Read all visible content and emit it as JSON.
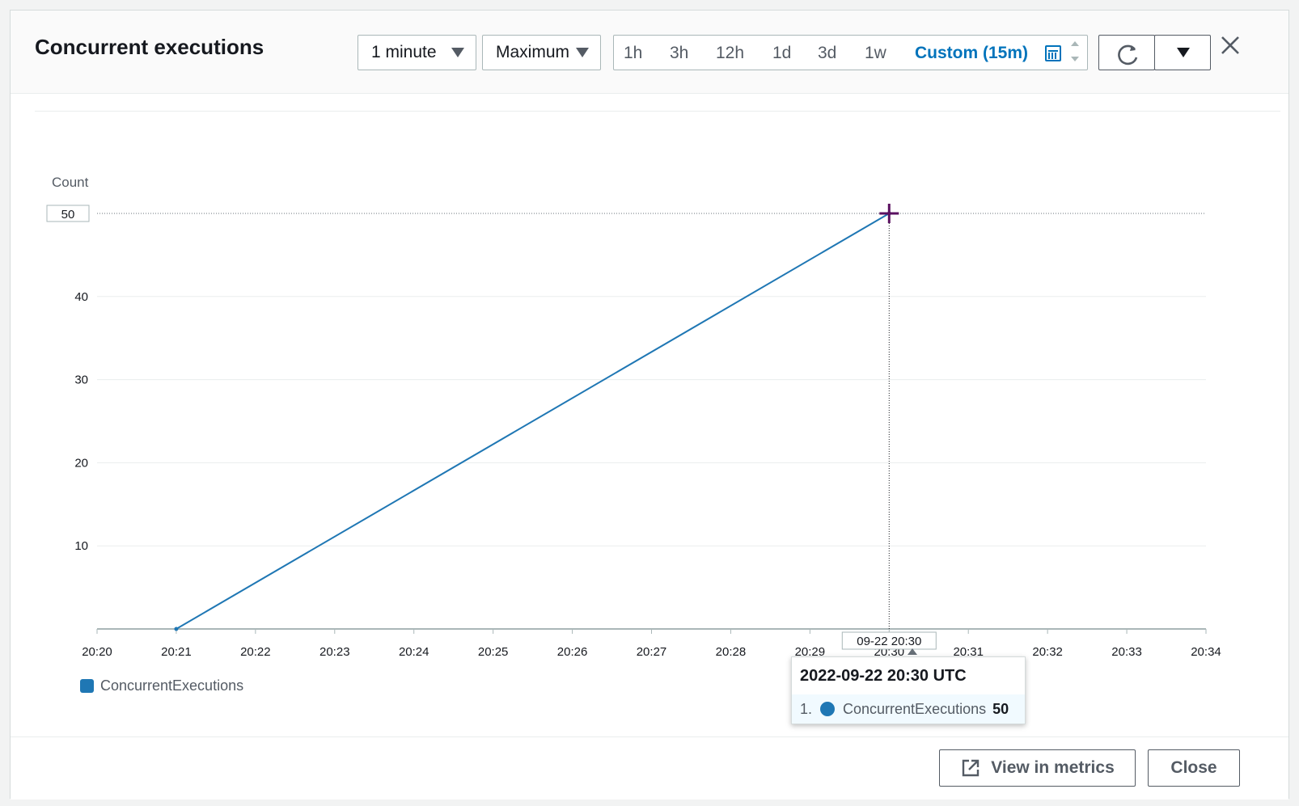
{
  "title": "Concurrent executions",
  "period_select": {
    "value": "1 minute"
  },
  "stat_select": {
    "value": "Maximum"
  },
  "time_range": {
    "options": [
      "1h",
      "3h",
      "12h",
      "1d",
      "3d",
      "1w"
    ],
    "custom_label": "Custom (15m)"
  },
  "icons": {
    "refresh": "refresh-icon",
    "dropdown": "chevron-down-icon",
    "close": "close-icon",
    "calendar": "calendar-icon",
    "external": "external-link-icon"
  },
  "colors": {
    "series": "#1f77b4",
    "link": "#0073bb",
    "crosshair": "#5a1060"
  },
  "chart_data": {
    "type": "line",
    "ylabel": "Count",
    "y_ticks": [
      10,
      20,
      30,
      40
    ],
    "y_highlight": "50",
    "ylim": [
      0,
      50
    ],
    "x_ticks": [
      "20:20",
      "20:21",
      "20:22",
      "20:23",
      "20:24",
      "20:25",
      "20:26",
      "20:27",
      "20:28",
      "20:29",
      "20:30",
      "20:31",
      "20:32",
      "20:33",
      "20:34"
    ],
    "x_highlight": "09-22 20:30",
    "series": [
      {
        "name": "ConcurrentExecutions",
        "x": [
          "20:21",
          "20:30"
        ],
        "values": [
          0,
          50
        ]
      }
    ],
    "grid": true,
    "legend_position": "bottom-left"
  },
  "legend": {
    "label": "ConcurrentExecutions"
  },
  "tooltip": {
    "title": "2022-09-22 20:30 UTC",
    "index": "1.",
    "series": "ConcurrentExecutions",
    "value": "50"
  },
  "footer": {
    "view_metrics_label": "View in metrics",
    "close_label": "Close"
  }
}
